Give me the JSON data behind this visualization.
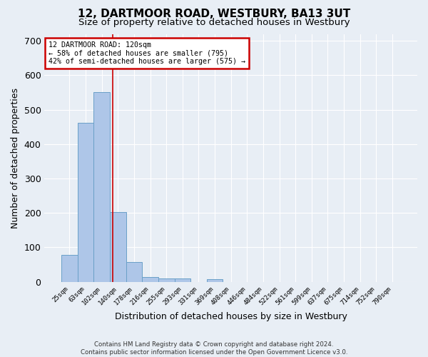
{
  "title1": "12, DARTMOOR ROAD, WESTBURY, BA13 3UT",
  "title2": "Size of property relative to detached houses in Westbury",
  "xlabel": "Distribution of detached houses by size in Westbury",
  "ylabel": "Number of detached properties",
  "footer1": "Contains HM Land Registry data © Crown copyright and database right 2024.",
  "footer2": "Contains public sector information licensed under the Open Government Licence v3.0.",
  "bar_labels": [
    "25sqm",
    "63sqm",
    "102sqm",
    "140sqm",
    "178sqm",
    "216sqm",
    "255sqm",
    "293sqm",
    "331sqm",
    "369sqm",
    "408sqm",
    "446sqm",
    "484sqm",
    "522sqm",
    "561sqm",
    "599sqm",
    "637sqm",
    "675sqm",
    "714sqm",
    "752sqm",
    "790sqm"
  ],
  "bar_values": [
    78,
    462,
    550,
    202,
    57,
    14,
    10,
    10,
    0,
    8,
    0,
    0,
    0,
    0,
    0,
    0,
    0,
    0,
    0,
    0,
    0
  ],
  "bar_color": "#aec6e8",
  "bar_edge_color": "#6aa0c8",
  "red_line_x": 2.68,
  "annotation_title": "12 DARTMOOR ROAD: 120sqm",
  "annotation_line1": "← 58% of detached houses are smaller (795)",
  "annotation_line2": "42% of semi-detached houses are larger (575) →",
  "annotation_box_color": "#ffffff",
  "annotation_box_edge": "#cc0000",
  "red_line_color": "#cc0000",
  "ylim": [
    0,
    720
  ],
  "yticks": [
    0,
    100,
    200,
    300,
    400,
    500,
    600,
    700
  ],
  "background_color": "#e8eef5",
  "grid_color": "#ffffff",
  "title1_fontsize": 11,
  "title2_fontsize": 9.5,
  "xlabel_fontsize": 9,
  "ylabel_fontsize": 9
}
